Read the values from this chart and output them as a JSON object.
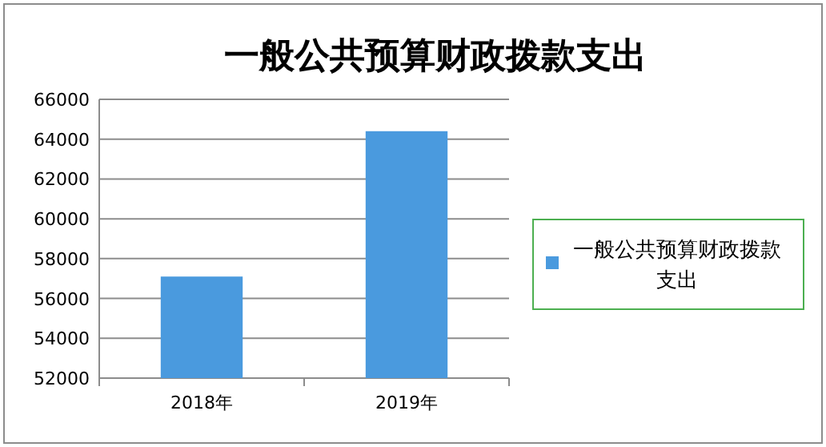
{
  "chart_data": {
    "type": "bar",
    "title": "一般公共预算财政拨款支出",
    "categories": [
      "2018年",
      "2019年"
    ],
    "series": [
      {
        "name": "一般公共预算财政拨款支出",
        "color": "#4a9ade",
        "values": [
          57100,
          64400
        ]
      }
    ],
    "ylim": [
      52000,
      66000
    ],
    "yticks": [
      52000,
      54000,
      56000,
      58000,
      60000,
      62000,
      64000,
      66000
    ],
    "grid": "y",
    "legend": "right"
  }
}
